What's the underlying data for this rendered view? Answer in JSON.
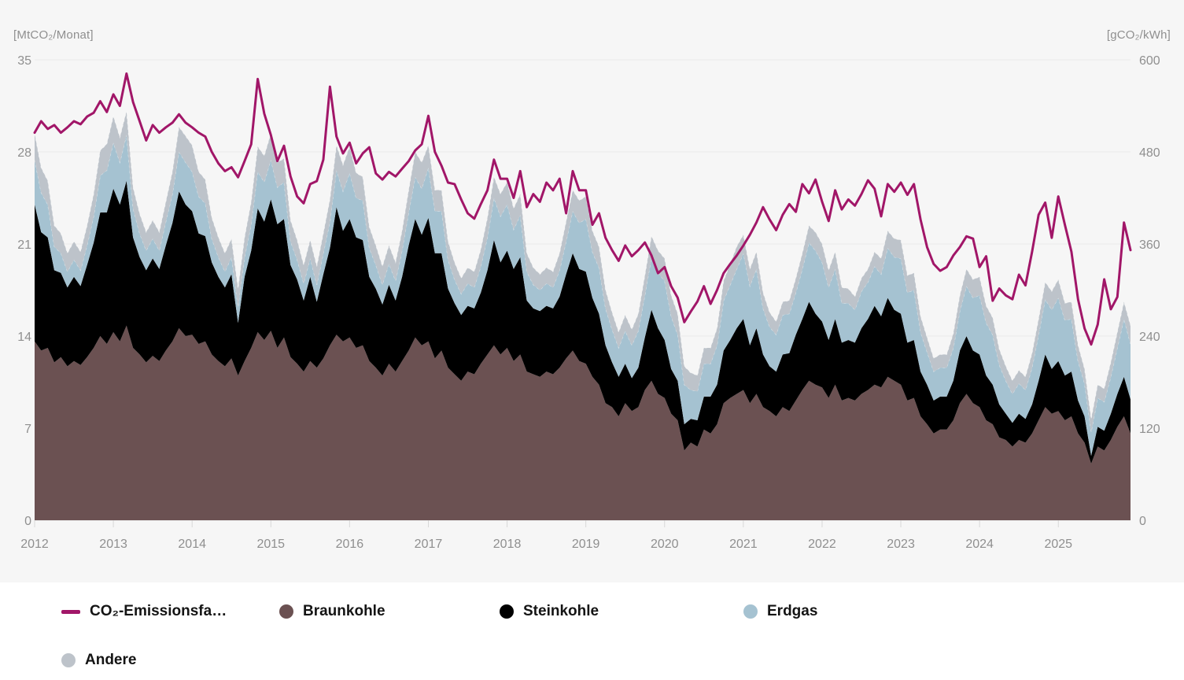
{
  "colors": {
    "background": "#f6f6f6",
    "panel_background": "#ffffff",
    "gridline": "#e9e9e9",
    "axis_line": "#d8d8d8",
    "axis_text": "#8f8f8f",
    "legend_text": "#141414",
    "line": "#a11668",
    "braunkohle": "#6b5152",
    "steinkohle": "#000000",
    "erdgas": "#a5c2d1",
    "andere": "#bdc3ca"
  },
  "axes": {
    "left": {
      "unit_label": "[MtCO₂/Monat]",
      "ticks": [
        0,
        7,
        14,
        21,
        28,
        35
      ],
      "max": 35
    },
    "right": {
      "unit_label": "[gCO₂/kWh]",
      "ticks": [
        0,
        120,
        240,
        360,
        480,
        600
      ],
      "max": 600
    },
    "x": {
      "years": [
        "2012",
        "2013",
        "2014",
        "2015",
        "2016",
        "2017",
        "2018",
        "2019",
        "2020",
        "2021",
        "2022",
        "2023",
        "2024",
        "2025"
      ]
    }
  },
  "legend": [
    {
      "label": "CO₂-Emissionsfa…",
      "marker": "line",
      "color": "#a11668"
    },
    {
      "label": "Braunkohle",
      "marker": "circle",
      "color": "#6b5152"
    },
    {
      "label": "Steinkohle",
      "marker": "circle",
      "color": "#000000"
    },
    {
      "label": "Erdgas",
      "marker": "circle",
      "color": "#a5c2d1"
    },
    {
      "label": "Andere",
      "marker": "circle",
      "color": "#bdc3ca"
    }
  ],
  "chart_data": {
    "type": "area",
    "title": "",
    "xlabel": "",
    "ylabel_left": "MtCO₂/Monat",
    "ylabel_right": "gCO₂/kWh",
    "ylim_left": [
      0,
      35
    ],
    "ylim_right": [
      0,
      600
    ],
    "grid": true,
    "legend_position": "bottom",
    "x_monthly_from": "2012-01",
    "x_monthly_to": "2025-12",
    "x_year_ticks": [
      2012,
      2013,
      2014,
      2015,
      2016,
      2017,
      2018,
      2019,
      2020,
      2021,
      2022,
      2023,
      2024,
      2025
    ],
    "stacked_series": [
      {
        "name": "Braunkohle",
        "color": "#6b5152",
        "axis": "left",
        "values": [
          13.6,
          12.9,
          13.1,
          12.0,
          12.4,
          11.7,
          12.1,
          11.8,
          12.4,
          13.1,
          14.0,
          13.4,
          14.3,
          13.6,
          14.8,
          13.1,
          12.6,
          12.0,
          12.5,
          12.1,
          12.9,
          13.6,
          14.6,
          14.0,
          14.1,
          13.4,
          13.6,
          12.6,
          12.1,
          11.7,
          12.3,
          11.0,
          12.1,
          13.1,
          14.3,
          13.7,
          14.4,
          13.1,
          13.9,
          12.4,
          11.9,
          11.3,
          12.1,
          11.6,
          12.3,
          13.3,
          14.1,
          13.6,
          13.9,
          13.1,
          13.3,
          12.1,
          11.6,
          11.0,
          11.9,
          11.3,
          12.1,
          12.9,
          13.9,
          13.3,
          13.6,
          12.3,
          12.9,
          11.6,
          11.1,
          10.6,
          11.3,
          11.1,
          11.9,
          12.6,
          13.3,
          12.6,
          13.1,
          12.1,
          12.6,
          11.3,
          11.1,
          10.9,
          11.3,
          11.1,
          11.6,
          12.3,
          12.9,
          12.1,
          11.9,
          10.9,
          10.3,
          8.9,
          8.6,
          7.9,
          8.9,
          8.3,
          8.6,
          9.9,
          10.6,
          9.6,
          9.3,
          8.1,
          7.6,
          5.3,
          5.9,
          5.6,
          6.9,
          6.6,
          7.3,
          8.9,
          9.3,
          9.6,
          9.9,
          8.9,
          9.6,
          8.6,
          8.3,
          7.9,
          8.6,
          8.3,
          9.1,
          9.9,
          10.6,
          10.3,
          10.1,
          9.3,
          10.3,
          9.1,
          9.3,
          9.1,
          9.6,
          9.9,
          10.3,
          10.1,
          10.9,
          10.6,
          10.3,
          9.1,
          9.3,
          7.9,
          7.3,
          6.6,
          6.9,
          6.9,
          7.6,
          8.9,
          9.6,
          8.9,
          8.6,
          7.6,
          7.3,
          6.3,
          6.1,
          5.6,
          6.1,
          5.9,
          6.6,
          7.6,
          8.6,
          8.1,
          8.3,
          7.6,
          7.9,
          6.6,
          5.9,
          4.3,
          5.6,
          5.3,
          6.1,
          7.1,
          7.9,
          6.6
        ]
      },
      {
        "name": "Steinkohle",
        "color": "#000000",
        "axis": "left",
        "values": [
          10.4,
          9.0,
          8.4,
          7.0,
          6.4,
          6.0,
          6.4,
          6.0,
          7.0,
          8.0,
          9.4,
          10.0,
          10.9,
          10.4,
          11.0,
          8.4,
          7.4,
          7.0,
          7.4,
          7.0,
          8.0,
          9.0,
          10.4,
          10.0,
          9.4,
          8.4,
          8.0,
          7.0,
          6.4,
          6.0,
          6.4,
          4.0,
          6.4,
          7.4,
          9.4,
          9.0,
          10.0,
          9.4,
          9.0,
          7.0,
          6.4,
          5.4,
          6.4,
          5.0,
          6.4,
          7.4,
          9.7,
          8.4,
          9.0,
          8.4,
          8.0,
          6.4,
          6.0,
          5.4,
          6.0,
          5.4,
          6.4,
          8.0,
          9.0,
          8.4,
          9.4,
          8.0,
          7.4,
          6.0,
          5.4,
          5.0,
          5.0,
          5.0,
          5.4,
          6.4,
          8.0,
          7.0,
          7.4,
          7.0,
          7.4,
          5.4,
          5.0,
          5.0,
          5.0,
          5.0,
          5.4,
          6.4,
          7.4,
          7.0,
          7.0,
          6.0,
          5.4,
          4.4,
          3.4,
          3.0,
          3.0,
          2.5,
          3.0,
          4.0,
          5.4,
          5.0,
          4.4,
          3.4,
          3.0,
          2.0,
          1.8,
          2.0,
          2.5,
          2.8,
          3.0,
          4.0,
          4.4,
          5.0,
          5.4,
          4.4,
          5.0,
          4.0,
          3.4,
          3.4,
          4.0,
          4.4,
          5.0,
          5.4,
          6.0,
          5.4,
          5.0,
          4.4,
          5.0,
          4.4,
          4.4,
          4.4,
          5.0,
          5.4,
          6.0,
          5.4,
          6.0,
          5.4,
          5.4,
          4.4,
          4.4,
          3.4,
          3.0,
          2.5,
          2.5,
          2.5,
          3.0,
          4.0,
          4.4,
          4.0,
          4.0,
          3.4,
          3.0,
          2.5,
          2.0,
          1.8,
          2.0,
          1.8,
          2.2,
          3.0,
          4.0,
          3.4,
          3.8,
          3.4,
          3.4,
          2.5,
          2.0,
          0.6,
          1.5,
          1.5,
          2.0,
          2.5,
          3.0,
          2.6
        ]
      },
      {
        "name": "Erdgas",
        "color": "#a5c2d1",
        "axis": "left",
        "values": [
          3.4,
          3.0,
          2.5,
          1.8,
          1.5,
          1.2,
          1.3,
          1.2,
          1.5,
          2.0,
          2.8,
          3.2,
          3.5,
          3.2,
          3.5,
          2.2,
          1.8,
          1.5,
          1.5,
          1.4,
          1.8,
          2.2,
          3.0,
          3.2,
          3.0,
          2.8,
          2.5,
          1.8,
          1.5,
          1.2,
          1.3,
          1.2,
          1.5,
          2.0,
          2.8,
          3.0,
          3.0,
          2.8,
          2.8,
          1.8,
          1.5,
          1.3,
          1.4,
          1.3,
          1.6,
          2.0,
          2.8,
          3.0,
          3.5,
          3.0,
          3.0,
          2.2,
          1.8,
          1.5,
          1.6,
          1.5,
          2.0,
          2.5,
          3.2,
          3.5,
          3.8,
          3.2,
          3.2,
          2.2,
          1.8,
          1.6,
          1.7,
          1.6,
          2.0,
          2.5,
          3.2,
          3.5,
          3.5,
          3.0,
          3.2,
          2.2,
          1.8,
          1.6,
          1.7,
          1.6,
          2.0,
          2.5,
          3.2,
          3.5,
          4.0,
          3.5,
          3.5,
          2.8,
          2.5,
          2.2,
          2.5,
          2.5,
          2.8,
          3.2,
          4.0,
          4.2,
          4.5,
          4.0,
          3.5,
          3.0,
          2.2,
          2.2,
          2.5,
          2.5,
          3.0,
          3.8,
          4.2,
          4.5,
          5.0,
          4.5,
          4.5,
          3.5,
          3.0,
          2.8,
          3.0,
          3.0,
          3.2,
          3.8,
          4.5,
          4.8,
          4.5,
          4.0,
          3.8,
          3.0,
          2.8,
          2.5,
          2.8,
          2.8,
          3.0,
          3.2,
          3.8,
          4.0,
          4.2,
          3.8,
          3.8,
          3.0,
          2.5,
          2.2,
          2.2,
          2.2,
          2.5,
          3.0,
          3.8,
          4.0,
          4.5,
          4.0,
          3.8,
          3.0,
          2.5,
          2.2,
          2.3,
          2.2,
          2.8,
          3.5,
          4.2,
          4.5,
          4.8,
          4.2,
          4.0,
          3.0,
          2.5,
          1.8,
          2.2,
          2.2,
          2.8,
          3.5,
          4.4,
          4.2
        ]
      },
      {
        "name": "Andere",
        "color": "#bdc3ca",
        "axis": "left",
        "values": [
          2.0,
          1.9,
          1.8,
          1.6,
          1.5,
          1.4,
          1.4,
          1.4,
          1.5,
          1.7,
          1.9,
          2.0,
          2.0,
          1.9,
          1.8,
          1.6,
          1.5,
          1.4,
          1.4,
          1.4,
          1.5,
          1.7,
          1.9,
          2.0,
          2.0,
          1.9,
          1.8,
          1.6,
          1.5,
          1.4,
          1.4,
          1.4,
          1.5,
          1.7,
          1.9,
          2.0,
          2.0,
          1.9,
          1.8,
          1.6,
          1.5,
          1.4,
          1.4,
          1.4,
          1.5,
          1.7,
          1.9,
          2.0,
          2.0,
          1.9,
          1.8,
          1.6,
          1.5,
          1.4,
          1.4,
          1.4,
          1.5,
          1.7,
          1.9,
          2.0,
          1.7,
          1.6,
          1.6,
          1.4,
          1.3,
          1.2,
          1.2,
          1.2,
          1.3,
          1.5,
          1.6,
          1.7,
          1.7,
          1.6,
          1.6,
          1.4,
          1.3,
          1.2,
          1.2,
          1.2,
          1.3,
          1.5,
          1.6,
          1.7,
          1.7,
          1.6,
          1.6,
          1.4,
          1.3,
          1.2,
          1.2,
          1.2,
          1.3,
          1.5,
          1.6,
          1.7,
          1.7,
          1.6,
          1.6,
          1.4,
          1.3,
          1.2,
          1.2,
          1.2,
          1.3,
          1.5,
          1.6,
          1.7,
          1.4,
          1.3,
          1.3,
          1.2,
          1.1,
          1.0,
          1.0,
          1.0,
          1.1,
          1.2,
          1.3,
          1.4,
          1.4,
          1.3,
          1.3,
          1.2,
          1.1,
          1.0,
          1.0,
          1.0,
          1.1,
          1.2,
          1.3,
          1.4,
          1.4,
          1.3,
          1.3,
          1.2,
          1.1,
          1.0,
          1.0,
          1.0,
          1.1,
          1.2,
          1.3,
          1.4,
          1.4,
          1.3,
          1.3,
          1.2,
          1.1,
          1.0,
          1.0,
          1.0,
          1.1,
          1.2,
          1.3,
          1.4,
          1.4,
          1.3,
          1.3,
          1.2,
          1.1,
          1.0,
          1.0,
          1.0,
          1.1,
          1.2,
          1.3,
          1.4
        ]
      }
    ],
    "line_series": {
      "name": "CO₂-Emissionsfaktor",
      "color": "#a11668",
      "axis": "right",
      "values": [
        505,
        520,
        510,
        515,
        505,
        512,
        520,
        516,
        526,
        531,
        546,
        532,
        555,
        540,
        582,
        545,
        520,
        495,
        515,
        505,
        512,
        518,
        529,
        518,
        512,
        505,
        500,
        480,
        465,
        455,
        460,
        447,
        468,
        490,
        575,
        530,
        502,
        468,
        488,
        448,
        422,
        413,
        438,
        442,
        470,
        565,
        500,
        478,
        492,
        465,
        478,
        486,
        452,
        444,
        454,
        448,
        458,
        468,
        482,
        490,
        527,
        480,
        462,
        440,
        438,
        418,
        400,
        393,
        412,
        430,
        470,
        445,
        445,
        420,
        455,
        408,
        425,
        415,
        440,
        430,
        445,
        400,
        455,
        430,
        430,
        385,
        400,
        368,
        352,
        338,
        358,
        344,
        352,
        362,
        345,
        322,
        330,
        305,
        290,
        258,
        272,
        285,
        305,
        282,
        300,
        322,
        334,
        345,
        358,
        372,
        388,
        408,
        392,
        378,
        398,
        412,
        402,
        438,
        426,
        444,
        415,
        390,
        430,
        405,
        418,
        410,
        425,
        443,
        432,
        396,
        438,
        428,
        440,
        424,
        438,
        392,
        356,
        334,
        325,
        330,
        345,
        356,
        370,
        367,
        330,
        344,
        286,
        302,
        293,
        288,
        320,
        306,
        350,
        398,
        414,
        368,
        422,
        385,
        350,
        288,
        250,
        229,
        255,
        314,
        275,
        291,
        388,
        352
      ]
    }
  }
}
